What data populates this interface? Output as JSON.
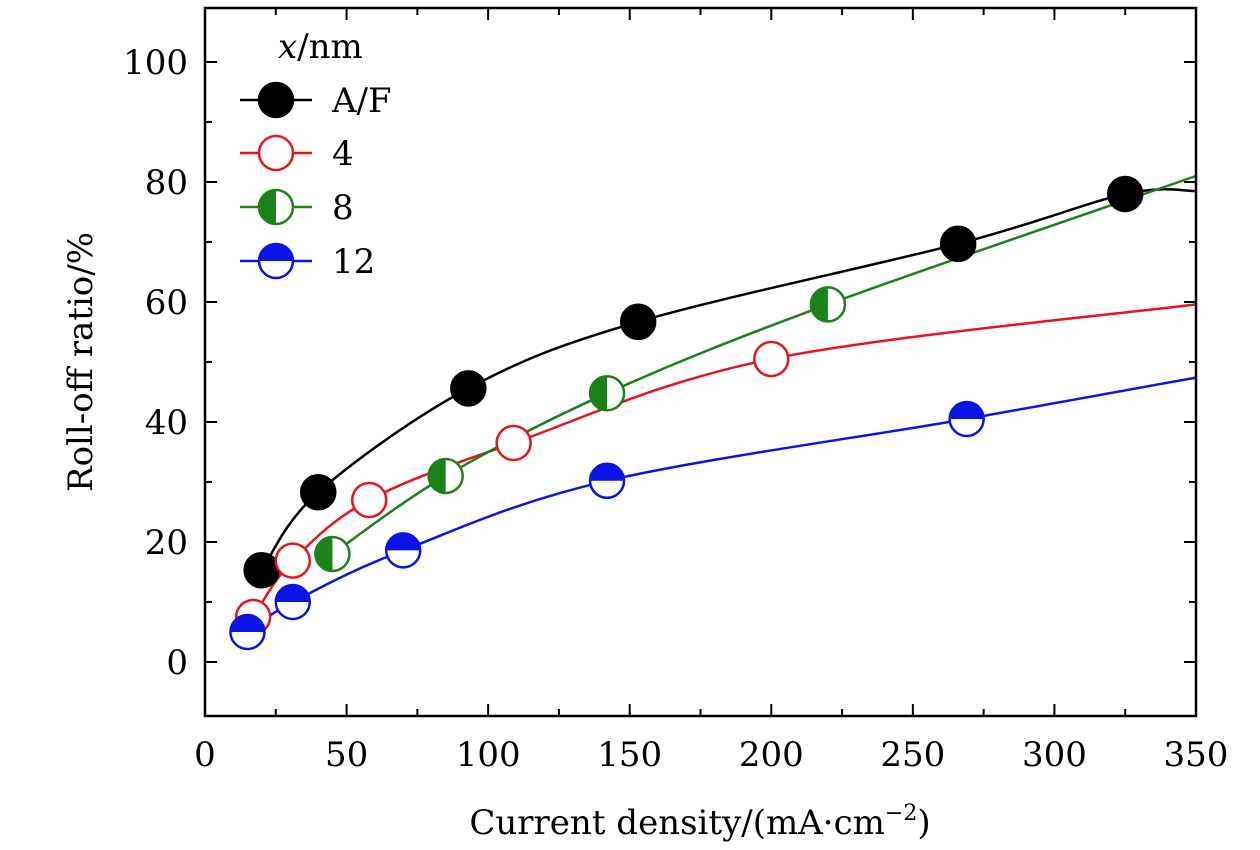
{
  "chart_data": {
    "type": "line",
    "title": "",
    "xlabel": "Current density/(mA·cm",
    "xlabel_sup": "−2",
    "xlabel_end": ")",
    "ylabel": "Roll-off ratio/%",
    "xlim": [
      0,
      350
    ],
    "ylim": [
      -9,
      109
    ],
    "x_ticks": [
      0,
      50,
      100,
      150,
      200,
      250,
      300,
      350
    ],
    "y_ticks": [
      0,
      20,
      40,
      60,
      80,
      100
    ],
    "x_tick_labels": [
      "0",
      "50",
      "100",
      "150",
      "200",
      "250",
      "300",
      "350"
    ],
    "y_tick_labels": [
      "0",
      "20",
      "40",
      "60",
      "80",
      "100"
    ],
    "grid": false,
    "legend": {
      "title_var": "x",
      "title_unit": "/nm",
      "placement": "top-left"
    },
    "series": [
      {
        "name": "A/F",
        "color": "#000000",
        "marker": "filled",
        "x": [
          20,
          40,
          93,
          153,
          266,
          325
        ],
        "y": [
          15.3,
          28.3,
          45.6,
          56.7,
          69.7,
          78.0
        ],
        "curve_end": [
          350,
          78.5
        ]
      },
      {
        "name": "4",
        "color": "#e8141c",
        "marker": "open",
        "x": [
          17,
          31,
          58,
          109,
          200
        ],
        "y": [
          7.5,
          16.9,
          27.0,
          36.5,
          50.5
        ],
        "curve_end": [
          350,
          59.6
        ]
      },
      {
        "name": "8",
        "color": "#1a8218",
        "marker": "half-left",
        "x": [
          45,
          85,
          142,
          220
        ],
        "y": [
          18.0,
          31.0,
          44.8,
          59.6
        ],
        "curve_end": [
          350,
          81.0
        ]
      },
      {
        "name": "12",
        "color": "#0a14e6",
        "marker": "half-top",
        "x": [
          15,
          31,
          70,
          142,
          269
        ],
        "y": [
          5.0,
          10.0,
          18.6,
          30.2,
          40.5
        ],
        "curve_end": [
          350,
          47.4
        ]
      }
    ]
  }
}
